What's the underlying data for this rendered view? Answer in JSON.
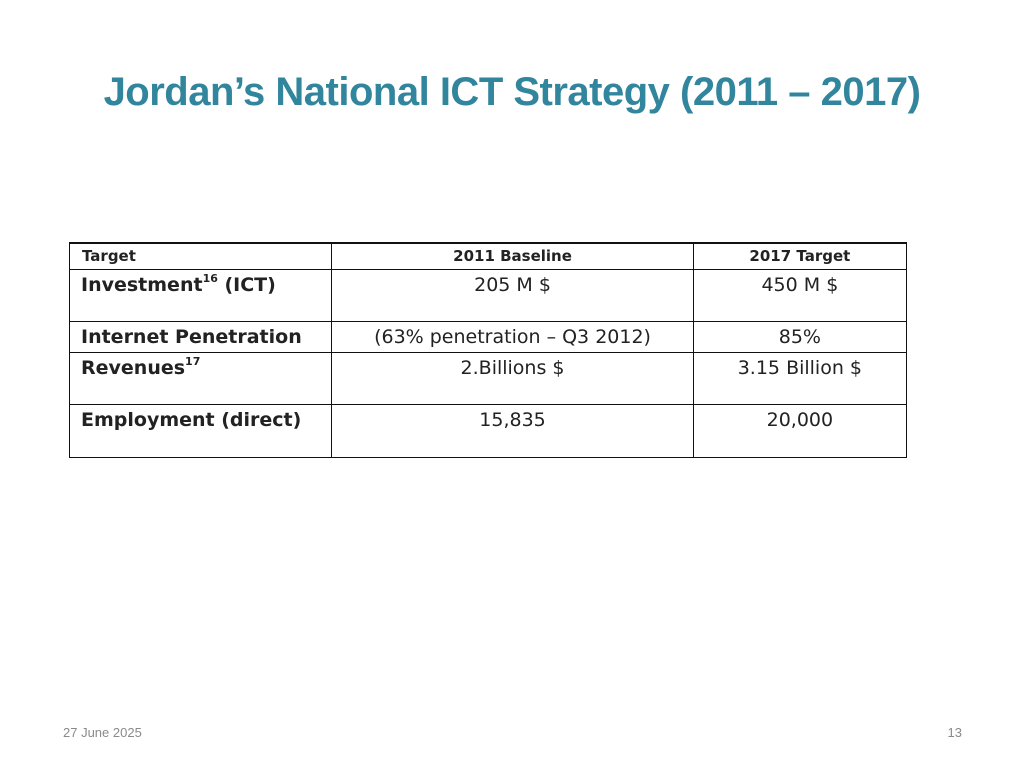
{
  "slide": {
    "title": "Jordan’s National ICT Strategy (2011 – 2017)"
  },
  "table": {
    "headers": {
      "target": "Target",
      "baseline": "2011 Baseline",
      "target_2017": "2017 Target"
    },
    "rows": [
      {
        "label": "Investment",
        "footnote": "16",
        "label_suffix": " (ICT)",
        "baseline": "205 M $",
        "target_2017": "450 M $"
      },
      {
        "label": "Internet Penetration",
        "footnote": "",
        "label_suffix": "",
        "baseline": "(63% penetration – Q3 2012)",
        "target_2017": "85%"
      },
      {
        "label": "Revenues",
        "footnote": "17",
        "label_suffix": "",
        "baseline": "2.Billions $",
        "target_2017": "3.15 Billion $"
      },
      {
        "label": "Employment (direct)",
        "footnote": "",
        "label_suffix": "",
        "baseline": "15,835",
        "target_2017": "20,000"
      }
    ]
  },
  "footer": {
    "date": "27 June 2025",
    "page_number": "13"
  }
}
